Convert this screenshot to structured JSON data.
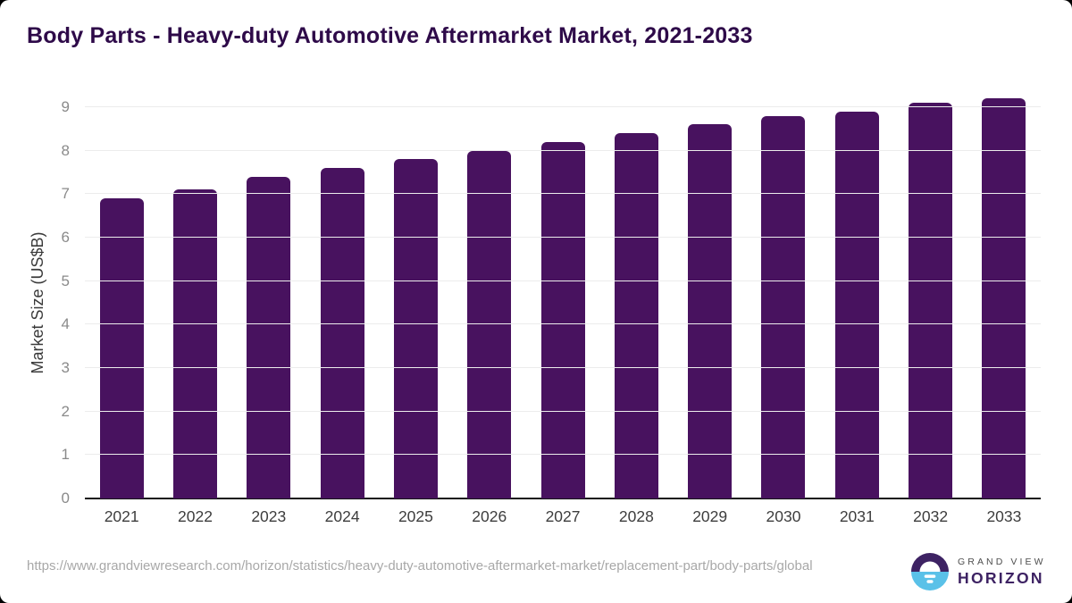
{
  "title": "Body Parts - Heavy-duty Automotive Aftermarket Market, 2021-2033",
  "chart_data": {
    "type": "bar",
    "title": "Body Parts - Heavy-duty Automotive Aftermarket Market, 2021-2033",
    "categories": [
      "2021",
      "2022",
      "2023",
      "2024",
      "2025",
      "2026",
      "2027",
      "2028",
      "2029",
      "2030",
      "2031",
      "2032",
      "2033"
    ],
    "values": [
      6.9,
      7.1,
      7.4,
      7.6,
      7.8,
      8.0,
      8.2,
      8.4,
      8.6,
      8.8,
      8.9,
      9.1,
      9.2
    ],
    "xlabel": "",
    "ylabel": "Market Size (US$B)",
    "ylim": [
      0,
      9
    ],
    "yticks": [
      0,
      1,
      2,
      3,
      4,
      5,
      6,
      7,
      8,
      9
    ],
    "grid": true,
    "legend": "none",
    "bar_color": "#48125f"
  },
  "colors": {
    "bar": "#48125f",
    "title": "#2e0a49",
    "gridline": "#ececec",
    "axis": "#161616",
    "ytick_text": "#8a8a8a",
    "xtick_text": "#3d3d3d",
    "url_text": "#a8a8a8",
    "logo_purple": "#3d2263",
    "logo_blue": "#5ac1e8"
  },
  "footer": {
    "source_url": "https://www.grandviewresearch.com/horizon/statistics/heavy-duty-automotive-aftermarket-market/replacement-part/body-parts/global",
    "logo": {
      "line1": "GRAND VIEW",
      "line2": "HORIZON"
    }
  }
}
